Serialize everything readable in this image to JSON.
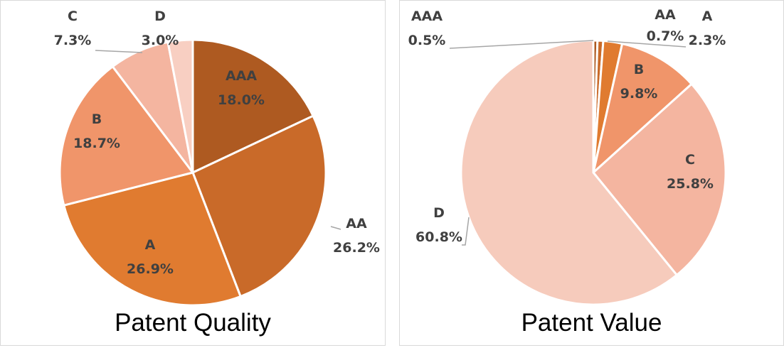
{
  "chart_data": [
    {
      "type": "pie",
      "title": "Patent Quality",
      "categories": [
        "AAA",
        "AA",
        "A",
        "B",
        "C",
        "D"
      ],
      "values": [
        18.0,
        26.2,
        26.9,
        18.7,
        7.3,
        3.0
      ],
      "value_labels": [
        "18.0%",
        "26.2%",
        "26.9%",
        "18.7%",
        "7.3%",
        "3.0%"
      ],
      "start_angle_deg": 0,
      "direction": "clockwise",
      "colors": [
        "#AE5A21",
        "#C96A29",
        "#E07B30",
        "#F0956A",
        "#F4B5A0",
        "#F8CFC2"
      ],
      "legend": "none"
    },
    {
      "type": "pie",
      "title": "Patent Value",
      "categories": [
        "AAA",
        "AA",
        "A",
        "B",
        "C",
        "D"
      ],
      "values": [
        0.5,
        0.7,
        2.3,
        9.8,
        25.8,
        60.8
      ],
      "value_labels": [
        "0.5%",
        "0.7%",
        "2.3%",
        "9.8%",
        "25.8%",
        "60.8%"
      ],
      "start_angle_deg": 0,
      "direction": "clockwise",
      "colors": [
        "#AE5A21",
        "#C96A29",
        "#E07B30",
        "#F0956A",
        "#F4B5A0",
        "#F6CBBC"
      ],
      "legend": "none"
    }
  ]
}
